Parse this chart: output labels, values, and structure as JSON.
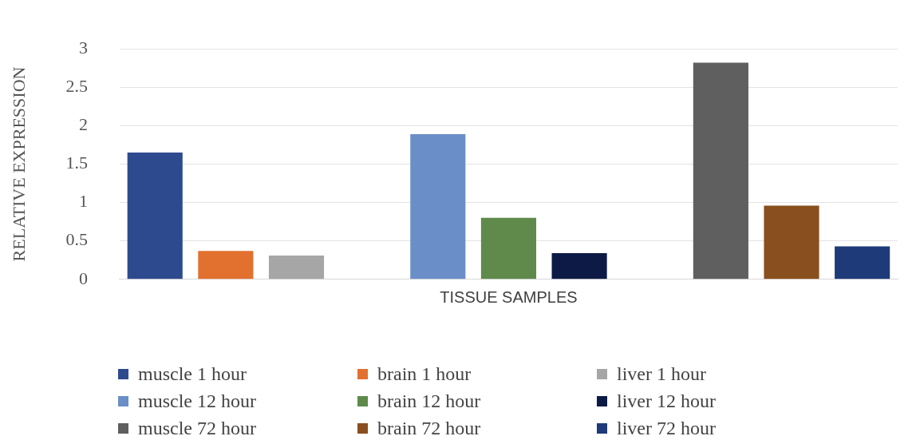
{
  "chart_data": {
    "type": "bar",
    "xlabel": "TISSUE SAMPLES",
    "ylabel": "RELATIVE EXPRESSION",
    "categories": [
      null,
      null,
      null,
      null,
      null,
      null,
      null,
      null,
      null,
      null,
      null
    ],
    "series": [
      {
        "name": "muscle 1 hour",
        "color": "#2e4a8f",
        "values": [
          1.65,
          null,
          null,
          null,
          null,
          null,
          null,
          null,
          null,
          null,
          null
        ]
      },
      {
        "name": "brain 1 hour",
        "color": "#e2702f",
        "values": [
          null,
          0.37,
          null,
          null,
          null,
          null,
          null,
          null,
          null,
          null,
          null
        ]
      },
      {
        "name": "liver 1 hour",
        "color": "#a6a6a6",
        "values": [
          null,
          null,
          0.31,
          null,
          null,
          null,
          null,
          null,
          null,
          null,
          null
        ]
      },
      {
        "name": "muscle 12 hour",
        "color": "#6a8fc8",
        "values": [
          null,
          null,
          null,
          null,
          1.89,
          null,
          null,
          null,
          null,
          null,
          null
        ]
      },
      {
        "name": "brain 12 hour",
        "color": "#5f8a4b",
        "values": [
          null,
          null,
          null,
          null,
          null,
          0.8,
          null,
          null,
          null,
          null,
          null
        ]
      },
      {
        "name": "liver 12 hour",
        "color": "#0d1a45",
        "values": [
          null,
          null,
          null,
          null,
          null,
          null,
          0.34,
          null,
          null,
          null,
          null
        ]
      },
      {
        "name": "muscle 72 hour",
        "color": "#5f5f5f",
        "values": [
          null,
          null,
          null,
          null,
          null,
          null,
          null,
          null,
          2.82,
          null,
          null
        ]
      },
      {
        "name": "brain 72 hour",
        "color": "#8a4f1e",
        "values": [
          null,
          null,
          null,
          null,
          null,
          null,
          null,
          null,
          null,
          0.96,
          null
        ]
      },
      {
        "name": "liver 72 hour",
        "color": "#1e3a78",
        "values": [
          null,
          null,
          null,
          null,
          null,
          null,
          null,
          null,
          null,
          null,
          0.43
        ]
      }
    ],
    "ylim": [
      0,
      3
    ],
    "yticks": [
      0,
      0.5,
      1,
      1.5,
      2,
      2.5,
      3
    ],
    "grid": "y",
    "legend": "bottom"
  }
}
